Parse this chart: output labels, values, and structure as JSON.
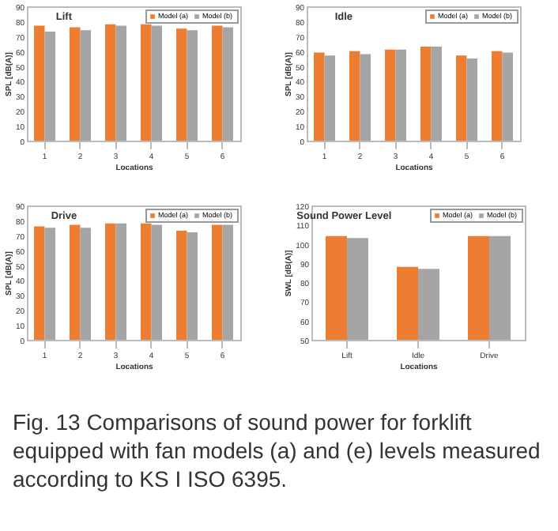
{
  "chart_data": [
    {
      "type": "bar",
      "title": "Lift",
      "xlabel": "Locations",
      "ylabel": "SPL [dB(A)]",
      "categories": [
        "1",
        "2",
        "3",
        "4",
        "5",
        "6"
      ],
      "ylim": [
        0,
        90
      ],
      "yticks": [
        0,
        10,
        20,
        30,
        40,
        50,
        60,
        70,
        80,
        90
      ],
      "grid": false,
      "legend": "top right",
      "series": [
        {
          "name": "Model (a)",
          "color": "#ed7d31",
          "values": [
            77,
            76,
            78,
            78,
            75,
            77
          ]
        },
        {
          "name": "Model (b)",
          "color": "#a5a5a5",
          "values": [
            73,
            74,
            77,
            77,
            74,
            76
          ]
        }
      ]
    },
    {
      "type": "bar",
      "title": "Idle",
      "xlabel": "Locations",
      "ylabel": "SPL [dB(A)]",
      "categories": [
        "1",
        "2",
        "3",
        "4",
        "5",
        "6"
      ],
      "ylim": [
        0,
        90
      ],
      "yticks": [
        0,
        10,
        20,
        30,
        40,
        50,
        60,
        70,
        80,
        90
      ],
      "grid": false,
      "legend": "top right",
      "series": [
        {
          "name": "Model (a)",
          "color": "#ed7d31",
          "values": [
            59,
            60,
            61,
            63,
            57,
            60
          ]
        },
        {
          "name": "Model (b)",
          "color": "#a5a5a5",
          "values": [
            57,
            58,
            61,
            63,
            55,
            59
          ]
        }
      ]
    },
    {
      "type": "bar",
      "title": "Drive",
      "xlabel": "Locations",
      "ylabel": "SPL [dB(A)]",
      "categories": [
        "1",
        "2",
        "3",
        "4",
        "5",
        "6"
      ],
      "ylim": [
        0,
        90
      ],
      "yticks": [
        0,
        10,
        20,
        30,
        40,
        50,
        60,
        70,
        80,
        90
      ],
      "grid": false,
      "legend": "top right",
      "series": [
        {
          "name": "Model (a)",
          "color": "#ed7d31",
          "values": [
            76,
            77,
            78,
            78,
            73,
            77
          ]
        },
        {
          "name": "Model (b)",
          "color": "#a5a5a5",
          "values": [
            75,
            75,
            78,
            77,
            72,
            77
          ]
        }
      ]
    },
    {
      "type": "bar",
      "title": "Sound Power Level",
      "xlabel": "Locations",
      "ylabel": "SWL [dB(A)]",
      "categories": [
        "Lift",
        "Idle",
        "Drive"
      ],
      "ylim": [
        50,
        120
      ],
      "yticks": [
        50,
        60,
        70,
        80,
        90,
        100,
        110,
        120
      ],
      "grid": false,
      "legend": "top right",
      "annotations": [
        "Fig. 13 Comparisons of sound power for forklift equipped with fan models (a) and (e) levels measured according to KS I ISO 6395."
      ],
      "series": [
        {
          "name": "Model (a)",
          "color": "#ed7d31",
          "values": [
            104,
            88,
            104
          ]
        },
        {
          "name": "Model (b)",
          "color": "#a5a5a5",
          "values": [
            103,
            87,
            104
          ]
        }
      ]
    }
  ]
}
